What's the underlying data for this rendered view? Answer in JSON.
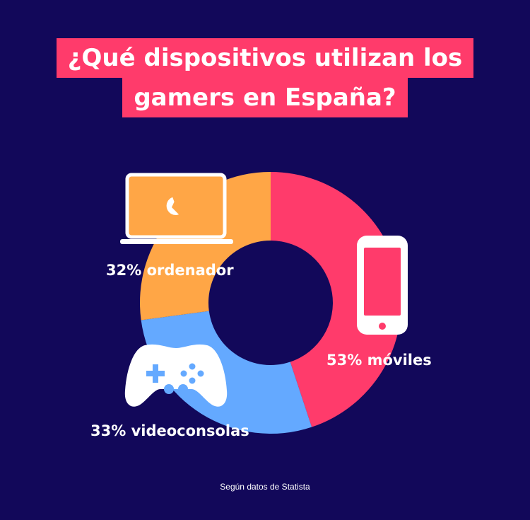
{
  "title": {
    "line1": "¿Qué dispositivos utilizan los",
    "line2": "gamers en España?"
  },
  "chart_data": {
    "type": "pie",
    "donut": true,
    "slices": [
      {
        "label": "53% móviles",
        "value": 53,
        "color": "#ff3b6b",
        "icon": "smartphone-icon"
      },
      {
        "label": "33% videoconsolas",
        "value": 33,
        "color": "#64a9ff",
        "icon": "gamepad-icon"
      },
      {
        "label": "32% ordenador",
        "value": 32,
        "color": "#ffa646",
        "icon": "laptop-icon"
      }
    ]
  },
  "colors": {
    "background": "#12085a",
    "title_bg": "#ff3b6b",
    "text": "#ffffff"
  },
  "source": "Según datos de Statista"
}
